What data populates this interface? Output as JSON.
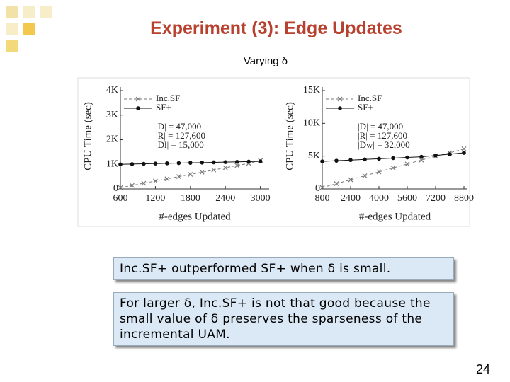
{
  "slide": {
    "title": "Experiment (3): Edge Updates",
    "subtitle": "Varying δ",
    "box1": "Inc.SF+ outperformed SF+ when δ is small.",
    "box2": "For larger δ, Inc.SF+ is not that good because the small value of δ preserves the sparseness of the incremental UAM.",
    "page": "24"
  },
  "chart_data": [
    {
      "type": "line",
      "x_label": "#-edges Updated",
      "y_label": "CPU Time (sec)",
      "x": [
        600,
        800,
        1000,
        1200,
        1400,
        1600,
        1800,
        2000,
        2200,
        2400,
        2600,
        2800,
        3000
      ],
      "xlim": [
        600,
        3150
      ],
      "xticks": [
        600,
        1200,
        1800,
        2400,
        3000
      ],
      "ylim": [
        0,
        4000
      ],
      "yticks": [
        0,
        {
          "value": 1000,
          "label": "1K"
        },
        {
          "value": 2000,
          "label": "2K"
        },
        {
          "value": 3000,
          "label": "3K"
        },
        {
          "value": 4000,
          "label": "4K"
        }
      ],
      "series": [
        {
          "name": "Inc.SF",
          "color": "#777777",
          "dashed": true,
          "marker": "x",
          "values": [
            50,
            140,
            230,
            320,
            410,
            500,
            590,
            680,
            770,
            860,
            950,
            1040,
            1150
          ]
        },
        {
          "name": "SF+",
          "color": "#111111",
          "dashed": false,
          "marker": "circle",
          "values": [
            1000,
            1010,
            1020,
            1030,
            1040,
            1050,
            1060,
            1070,
            1080,
            1090,
            1100,
            1110,
            1120
          ]
        }
      ],
      "annotations": [
        "|D| = 47,000",
        "|R| = 127,600",
        "|Dl| = 15,000"
      ]
    },
    {
      "type": "line",
      "x_label": "#-edges Updated",
      "y_label": "CPU Time (sec)",
      "x": [
        800,
        1600,
        2400,
        3200,
        4000,
        4800,
        5600,
        6400,
        7200,
        8000,
        8800
      ],
      "xlim": [
        800,
        9000
      ],
      "xticks": [
        800,
        2400,
        4000,
        5600,
        7200,
        8800
      ],
      "ylim": [
        0,
        15000
      ],
      "yticks": [
        0,
        {
          "value": 5000,
          "label": "5K"
        },
        {
          "value": 10000,
          "label": "10K"
        },
        {
          "value": 15000,
          "label": "15K"
        }
      ],
      "series": [
        {
          "name": "Inc.SF",
          "color": "#777777",
          "dashed": true,
          "marker": "x",
          "values": [
            200,
            800,
            1400,
            2000,
            2600,
            3200,
            3800,
            4400,
            5000,
            5500,
            6100
          ]
        },
        {
          "name": "SF+",
          "color": "#111111",
          "dashed": false,
          "marker": "circle",
          "values": [
            4200,
            4300,
            4400,
            4500,
            4600,
            4700,
            4800,
            4900,
            5100,
            5300,
            5500
          ]
        }
      ],
      "annotations": [
        "|D| = 47,000",
        "|R| = 127,600",
        "|Dw| = 32,000"
      ]
    }
  ]
}
